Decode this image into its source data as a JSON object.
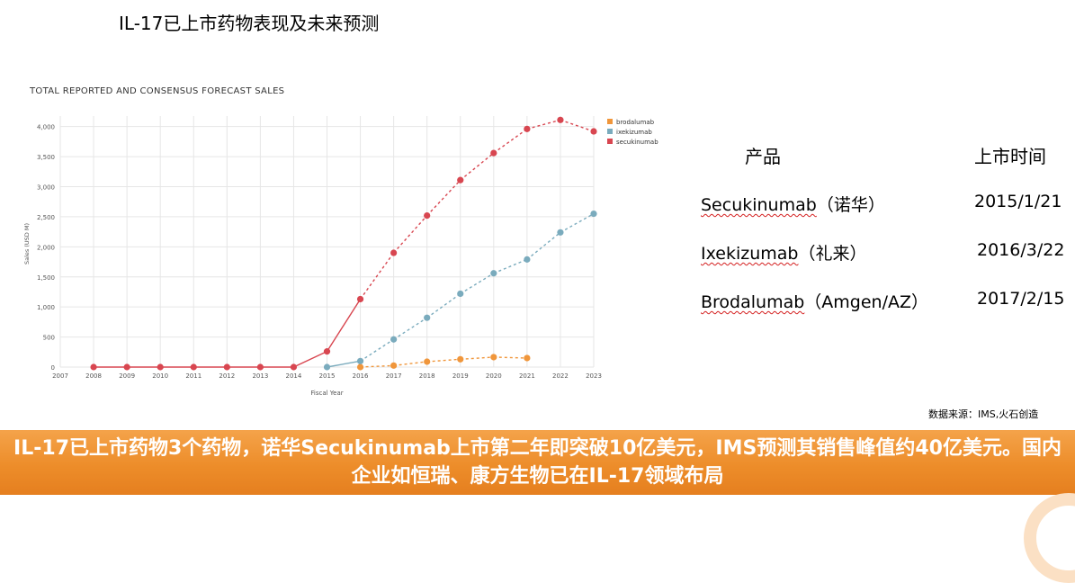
{
  "slide": {
    "title": "IL-17已上市药物表现及未来预测",
    "source": "数据来源：IMS,火石创造",
    "banner": "IL-17已上市药物3个药物，诺华Secukinumab上市第二年即突破10亿美元，IMS预测其销售峰值约40亿美元。国内企业如恒瑞、康方生物已在IL-17领域布局"
  },
  "table": {
    "headers": [
      "产品",
      "上市时间"
    ],
    "rows": [
      {
        "name": "Secukinumab",
        "company": "（诺华）",
        "date": "2015/1/21"
      },
      {
        "name": "Ixekizumab",
        "company": "（礼来）",
        "date": "2016/3/22"
      },
      {
        "name": "Brodalumab",
        "company": "（Amgen/AZ）",
        "date": "2017/2/15"
      }
    ]
  },
  "chart_data": {
    "type": "line",
    "title": "TOTAL REPORTED AND CONSENSUS FORECAST SALES",
    "xlabel": "Fiscal Year",
    "ylabel": "Sales (USD M)",
    "x": [
      "2007",
      "2008",
      "2009",
      "2010",
      "2011",
      "2012",
      "2013",
      "2014",
      "2015",
      "2016",
      "2017",
      "2018",
      "2019",
      "2020",
      "2021",
      "2022",
      "2023"
    ],
    "y_ticks": [
      "0",
      "500",
      "1,000",
      "1,500",
      "2,000",
      "2,500",
      "3,000",
      "3,500",
      "4,000"
    ],
    "ylim": [
      0,
      4100
    ],
    "grid": true,
    "legend_position": "top-right",
    "reported_through": "2016",
    "series": [
      {
        "name": "brodalumab",
        "color": "#f0963b",
        "x": [
          "2016",
          "2017",
          "2018",
          "2019",
          "2020",
          "2021"
        ],
        "values": [
          0,
          25,
          90,
          130,
          165,
          150
        ]
      },
      {
        "name": "ixekizumab",
        "color": "#7aabbd",
        "x": [
          "2015",
          "2016",
          "2017",
          "2018",
          "2019",
          "2020",
          "2021",
          "2022",
          "2023"
        ],
        "values": [
          0,
          100,
          460,
          820,
          1220,
          1560,
          1790,
          2240,
          2550
        ]
      },
      {
        "name": "secukinumab",
        "color": "#d84650",
        "x": [
          "2008",
          "2009",
          "2010",
          "2011",
          "2012",
          "2013",
          "2014",
          "2015",
          "2016",
          "2017",
          "2018",
          "2019",
          "2020",
          "2021",
          "2022",
          "2023"
        ],
        "values": [
          0,
          0,
          0,
          0,
          0,
          0,
          0,
          260,
          1130,
          1900,
          2520,
          3110,
          3560,
          3960,
          4110,
          3920
        ]
      }
    ]
  }
}
